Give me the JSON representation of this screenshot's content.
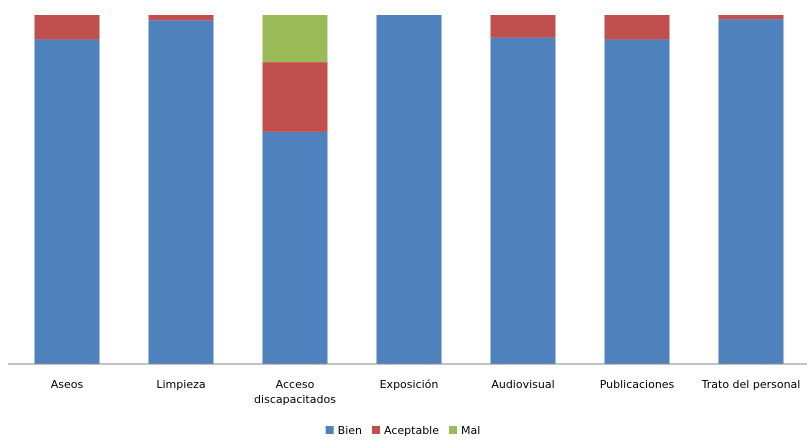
{
  "chart_data": {
    "type": "bar",
    "stacked": true,
    "normalized": true,
    "categories": [
      [
        "Aseos"
      ],
      [
        "Limpieza"
      ],
      [
        "Acceso",
        "discapacitados"
      ],
      [
        "Exposición"
      ],
      [
        "Audiovisual"
      ],
      [
        "Publicaciones"
      ],
      [
        "Trato del personal"
      ]
    ],
    "series": [
      {
        "name": "Bien",
        "color": "#4F81BD",
        "values": [
          93,
          98.5,
          66.5,
          100,
          93.5,
          93,
          98.8
        ]
      },
      {
        "name": "Aceptable",
        "color": "#C0504D",
        "values": [
          7,
          1.5,
          20,
          0,
          6.5,
          7,
          1.2
        ]
      },
      {
        "name": "Mal",
        "color": "#9BBB59",
        "values": [
          0,
          0,
          13.5,
          0,
          0,
          0,
          0
        ]
      }
    ],
    "ylim": [
      0,
      100
    ],
    "grid": false,
    "legend_position": "bottom"
  }
}
